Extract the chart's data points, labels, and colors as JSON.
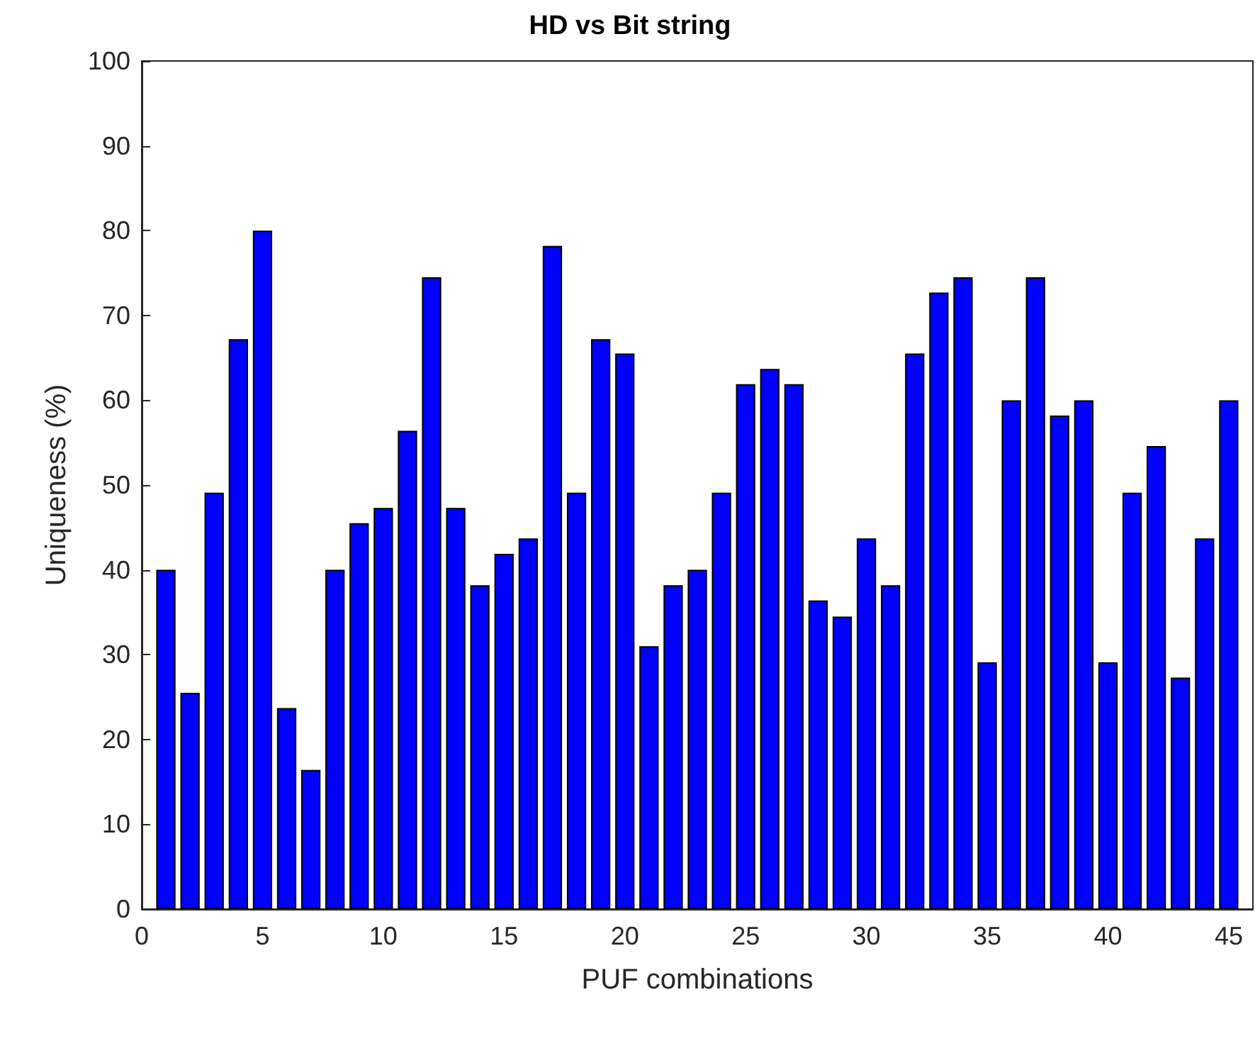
{
  "chart_data": {
    "type": "bar",
    "title": "HD vs Bit string",
    "xlabel": "PUF combinations",
    "ylabel": "Uniqueness (%)",
    "x": [
      1,
      2,
      3,
      4,
      5,
      6,
      7,
      8,
      9,
      10,
      11,
      12,
      13,
      14,
      15,
      16,
      17,
      18,
      19,
      20,
      21,
      22,
      23,
      24,
      25,
      26,
      27,
      28,
      29,
      30,
      31,
      32,
      33,
      34,
      35,
      36,
      37,
      38,
      39,
      40,
      41,
      42,
      43,
      44,
      45
    ],
    "values": [
      40,
      25.5,
      49.1,
      67.2,
      80,
      23.7,
      16.4,
      40,
      45.5,
      47.3,
      56.4,
      74.5,
      47.3,
      38.2,
      41.9,
      43.7,
      78.2,
      49.1,
      67.2,
      65.5,
      31.0,
      38.2,
      40,
      49.1,
      61.9,
      63.7,
      61.9,
      36.4,
      34.5,
      43.7,
      38.2,
      65.5,
      72.7,
      74.5,
      29.1,
      60,
      74.5,
      58.2,
      60,
      29.1,
      49.1,
      54.6,
      27.3,
      43.7,
      60
    ],
    "color": "#0000ff",
    "xlim": [
      0,
      46
    ],
    "xticks": [
      0,
      5,
      10,
      15,
      20,
      25,
      30,
      35,
      40,
      45
    ],
    "ylim": [
      0,
      100
    ],
    "yticks": [
      0,
      10,
      20,
      30,
      40,
      50,
      60,
      70,
      80,
      90,
      100
    ],
    "grid": false
  }
}
